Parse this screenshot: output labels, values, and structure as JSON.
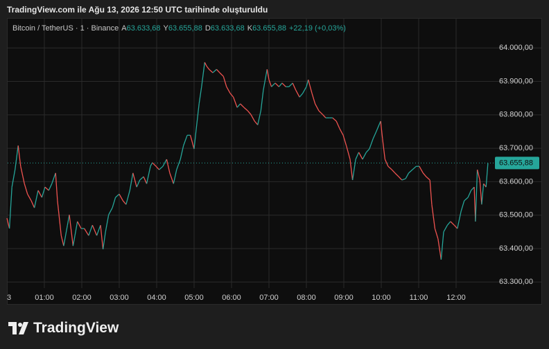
{
  "brand": "TradingView",
  "chart_data": {
    "type": "line",
    "caption": "TradingView.com ile Ağu 13, 2026 12:50 UTC tarihinde oluşturuldu",
    "title": "Bitcoin / TetherUS · 1 · Binance",
    "ohlc": [
      {
        "key": "A",
        "value": "63.633,68"
      },
      {
        "key": "Y",
        "value": "63.655,88"
      },
      {
        "key": "D",
        "value": "63.633,68"
      },
      {
        "key": "K",
        "value": "63.655,88"
      }
    ],
    "change": "+22,19 (+0,03%)",
    "up_color": "#26a69a",
    "down_color": "#ef5350",
    "grid": true,
    "x": [
      0,
      4,
      8,
      13,
      18,
      22,
      28,
      33,
      39,
      44,
      50,
      56,
      61,
      67,
      72,
      78,
      81,
      87,
      91,
      97,
      100,
      106,
      109,
      113,
      119,
      124,
      131,
      137,
      144,
      150,
      154,
      158,
      163,
      169,
      174,
      180,
      186,
      191,
      197,
      202,
      208,
      213,
      219,
      224,
      230,
      233,
      239,
      244,
      250,
      256,
      261,
      267,
      272,
      278,
      283,
      289,
      294,
      300,
      303,
      308,
      312,
      317,
      320,
      324,
      330,
      336,
      341,
      347,
      352,
      358,
      363,
      369,
      374,
      380,
      386,
      391,
      397,
      402,
      407,
      411,
      417,
      420,
      424,
      430,
      436,
      441,
      447,
      452,
      458,
      463,
      469,
      474,
      480,
      483,
      489,
      494,
      500,
      506,
      511,
      517,
      522,
      528,
      533,
      539,
      544,
      550,
      554,
      559,
      564,
      570,
      576,
      581,
      587,
      592,
      599,
      602,
      606,
      611,
      617,
      622,
      628,
      633,
      639,
      644,
      650,
      656,
      661,
      667,
      672,
      678,
      681,
      686,
      691,
      696,
      700,
      706,
      711,
      717,
      722,
      728,
      733,
      739,
      744,
      749,
      751,
      754,
      758,
      761,
      764,
      768,
      771
    ],
    "values": [
      63491,
      63460,
      63584,
      63636,
      63708,
      63646,
      63594,
      63563,
      63543,
      63522,
      63574,
      63553,
      63584,
      63574,
      63594,
      63626,
      63543,
      63439,
      63408,
      63470,
      63501,
      63408,
      63439,
      63481,
      63460,
      63460,
      63439,
      63470,
      63439,
      63470,
      63398,
      63450,
      63501,
      63522,
      63553,
      63563,
      63543,
      63532,
      63574,
      63626,
      63584,
      63605,
      63615,
      63594,
      63646,
      63657,
      63646,
      63636,
      63646,
      63667,
      63626,
      63594,
      63636,
      63667,
      63708,
      63739,
      63739,
      63698,
      63750,
      63833,
      63884,
      63957,
      63946,
      63936,
      63926,
      63936,
      63926,
      63915,
      63884,
      63864,
      63853,
      63822,
      63833,
      63822,
      63812,
      63801,
      63781,
      63770,
      63812,
      63874,
      63936,
      63905,
      63884,
      63895,
      63884,
      63895,
      63884,
      63884,
      63895,
      63874,
      63853,
      63864,
      63884,
      63905,
      63864,
      63833,
      63812,
      63801,
      63791,
      63791,
      63791,
      63781,
      63760,
      63739,
      63708,
      63667,
      63605,
      63667,
      63688,
      63667,
      63688,
      63698,
      63729,
      63750,
      63781,
      63729,
      63667,
      63646,
      63636,
      63626,
      63615,
      63605,
      63609,
      63626,
      63636,
      63646,
      63646,
      63626,
      63615,
      63605,
      63532,
      63460,
      63429,
      63367,
      63450,
      63470,
      63481,
      63470,
      63460,
      63512,
      63543,
      63553,
      63574,
      63584,
      63481,
      63636,
      63605,
      63532,
      63594,
      63584,
      63655.88
    ],
    "last_price": {
      "value": 63655.88,
      "label": "63.655,88"
    },
    "xlim": [
      0,
      780
    ],
    "xticks": [
      {
        "value": 0,
        "label": "3"
      },
      {
        "value": 60,
        "label": "01:00"
      },
      {
        "value": 120,
        "label": "02:00"
      },
      {
        "value": 180,
        "label": "03:00"
      },
      {
        "value": 240,
        "label": "04:00"
      },
      {
        "value": 300,
        "label": "05:00"
      },
      {
        "value": 360,
        "label": "06:00"
      },
      {
        "value": 420,
        "label": "07:00"
      },
      {
        "value": 480,
        "label": "08:00"
      },
      {
        "value": 540,
        "label": "09:00"
      },
      {
        "value": 600,
        "label": "10:00"
      },
      {
        "value": 660,
        "label": "11:00"
      },
      {
        "value": 720,
        "label": "12:00"
      }
    ],
    "ylim": [
      63284,
      64102
    ],
    "yticks": [
      {
        "value": 63300,
        "label": "63.300,00"
      },
      {
        "value": 63400,
        "label": "63.400,00"
      },
      {
        "value": 63500,
        "label": "63.500,00"
      },
      {
        "value": 63600,
        "label": "63.600,00"
      },
      {
        "value": 63700,
        "label": "63.700,00"
      },
      {
        "value": 63800,
        "label": "63.800,00"
      },
      {
        "value": 63900,
        "label": "63.900,00"
      },
      {
        "value": 64000,
        "label": "64.000,00"
      }
    ]
  }
}
